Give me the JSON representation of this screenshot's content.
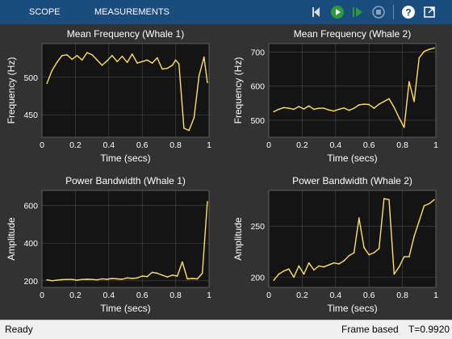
{
  "toolbar": {
    "tabs": [
      "SCOPE",
      "MEASUREMENTS"
    ],
    "icons": [
      "step-back-icon",
      "run-icon",
      "step-forward-icon",
      "stop-icon",
      "help-icon",
      "undock-icon"
    ]
  },
  "colors": {
    "background": "#323232",
    "axes": "#141414",
    "grid": "#4a4a4a",
    "text": "#ffffff",
    "line": "#ffe066",
    "toolbar": "#1a4d7e",
    "status": "#f0f0f0"
  },
  "chart_data": [
    {
      "type": "line",
      "title": "Mean Frequency (Whale 1)",
      "xlabel": "Time (secs)",
      "ylabel": "Frequency (Hz)",
      "xlim": [
        0,
        1
      ],
      "ylim": [
        420,
        545
      ],
      "xticks": [
        0,
        0.2,
        0.4,
        0.6,
        0.8,
        1
      ],
      "yticks": [
        450,
        500
      ],
      "x": [
        0.03,
        0.06,
        0.09,
        0.12,
        0.15,
        0.18,
        0.21,
        0.24,
        0.27,
        0.3,
        0.33,
        0.36,
        0.39,
        0.42,
        0.45,
        0.48,
        0.51,
        0.54,
        0.57,
        0.6,
        0.63,
        0.66,
        0.69,
        0.72,
        0.75,
        0.78,
        0.8,
        0.82,
        0.85,
        0.88,
        0.91,
        0.94,
        0.97,
        0.99
      ],
      "y": [
        492,
        509,
        520,
        529,
        530,
        524,
        529,
        523,
        533,
        530,
        523,
        516,
        522,
        529,
        521,
        528,
        520,
        531,
        519,
        521,
        523,
        519,
        526,
        511,
        512,
        516,
        523,
        518,
        432,
        429,
        446,
        502,
        527,
        493
      ],
      "grid": true
    },
    {
      "type": "line",
      "title": "Mean Frequency (Whale 2)",
      "xlabel": "Time (secs)",
      "ylabel": "Frequency (Hz)",
      "xlim": [
        0,
        1
      ],
      "ylim": [
        450,
        725
      ],
      "xticks": [
        0,
        0.2,
        0.4,
        0.6,
        0.8,
        1
      ],
      "yticks": [
        500,
        600,
        700
      ],
      "x": [
        0.03,
        0.06,
        0.09,
        0.12,
        0.15,
        0.18,
        0.21,
        0.24,
        0.27,
        0.3,
        0.33,
        0.36,
        0.39,
        0.42,
        0.45,
        0.48,
        0.51,
        0.54,
        0.57,
        0.6,
        0.63,
        0.66,
        0.69,
        0.72,
        0.75,
        0.78,
        0.81,
        0.84,
        0.87,
        0.9,
        0.93,
        0.96,
        0.99
      ],
      "y": [
        525,
        532,
        537,
        535,
        532,
        540,
        533,
        542,
        532,
        535,
        535,
        530,
        527,
        532,
        536,
        529,
        535,
        545,
        547,
        546,
        535,
        547,
        555,
        563,
        538,
        507,
        479,
        613,
        555,
        683,
        702,
        708,
        712
      ],
      "grid": true
    },
    {
      "type": "line",
      "title": "Power Bandwidth (Whale 1)",
      "xlabel": "Time (secs)",
      "ylabel": "Amplitude",
      "xlim": [
        0,
        1
      ],
      "ylim": [
        165,
        680
      ],
      "xticks": [
        0,
        0.2,
        0.4,
        0.6,
        0.8,
        1
      ],
      "yticks": [
        200,
        400,
        600
      ],
      "x": [
        0.03,
        0.06,
        0.09,
        0.12,
        0.15,
        0.18,
        0.21,
        0.24,
        0.27,
        0.3,
        0.33,
        0.36,
        0.39,
        0.42,
        0.45,
        0.48,
        0.51,
        0.54,
        0.57,
        0.6,
        0.63,
        0.66,
        0.69,
        0.72,
        0.75,
        0.78,
        0.81,
        0.84,
        0.87,
        0.9,
        0.93,
        0.96,
        0.99
      ],
      "y": [
        205,
        200,
        203,
        206,
        207,
        207,
        203,
        207,
        208,
        207,
        205,
        210,
        208,
        212,
        210,
        208,
        215,
        212,
        215,
        225,
        222,
        245,
        240,
        230,
        220,
        230,
        225,
        300,
        210,
        212,
        210,
        240,
        620
      ],
      "grid": true
    },
    {
      "type": "line",
      "title": "Power Bandwidth (Whale 2)",
      "xlabel": "Time (secs)",
      "ylabel": "Amplitude",
      "xlim": [
        0,
        1
      ],
      "ylim": [
        190,
        285
      ],
      "xticks": [
        0,
        0.2,
        0.4,
        0.6,
        0.8,
        1
      ],
      "yticks": [
        200,
        250
      ],
      "x": [
        0.03,
        0.06,
        0.09,
        0.12,
        0.15,
        0.18,
        0.21,
        0.24,
        0.27,
        0.3,
        0.33,
        0.36,
        0.39,
        0.42,
        0.45,
        0.48,
        0.51,
        0.54,
        0.57,
        0.6,
        0.63,
        0.66,
        0.69,
        0.72,
        0.75,
        0.78,
        0.81,
        0.84,
        0.87,
        0.9,
        0.93,
        0.96,
        0.99
      ],
      "y": [
        197,
        203,
        206,
        208,
        200,
        211,
        203,
        214,
        207,
        211,
        210,
        212,
        214,
        213,
        216,
        221,
        224,
        258,
        229,
        222,
        224,
        228,
        277,
        276,
        203,
        210,
        220,
        220,
        240,
        255,
        270,
        272,
        276
      ],
      "grid": true
    }
  ],
  "status": {
    "left": "Ready",
    "mode": "Frame based",
    "time": "T=0.9920"
  }
}
